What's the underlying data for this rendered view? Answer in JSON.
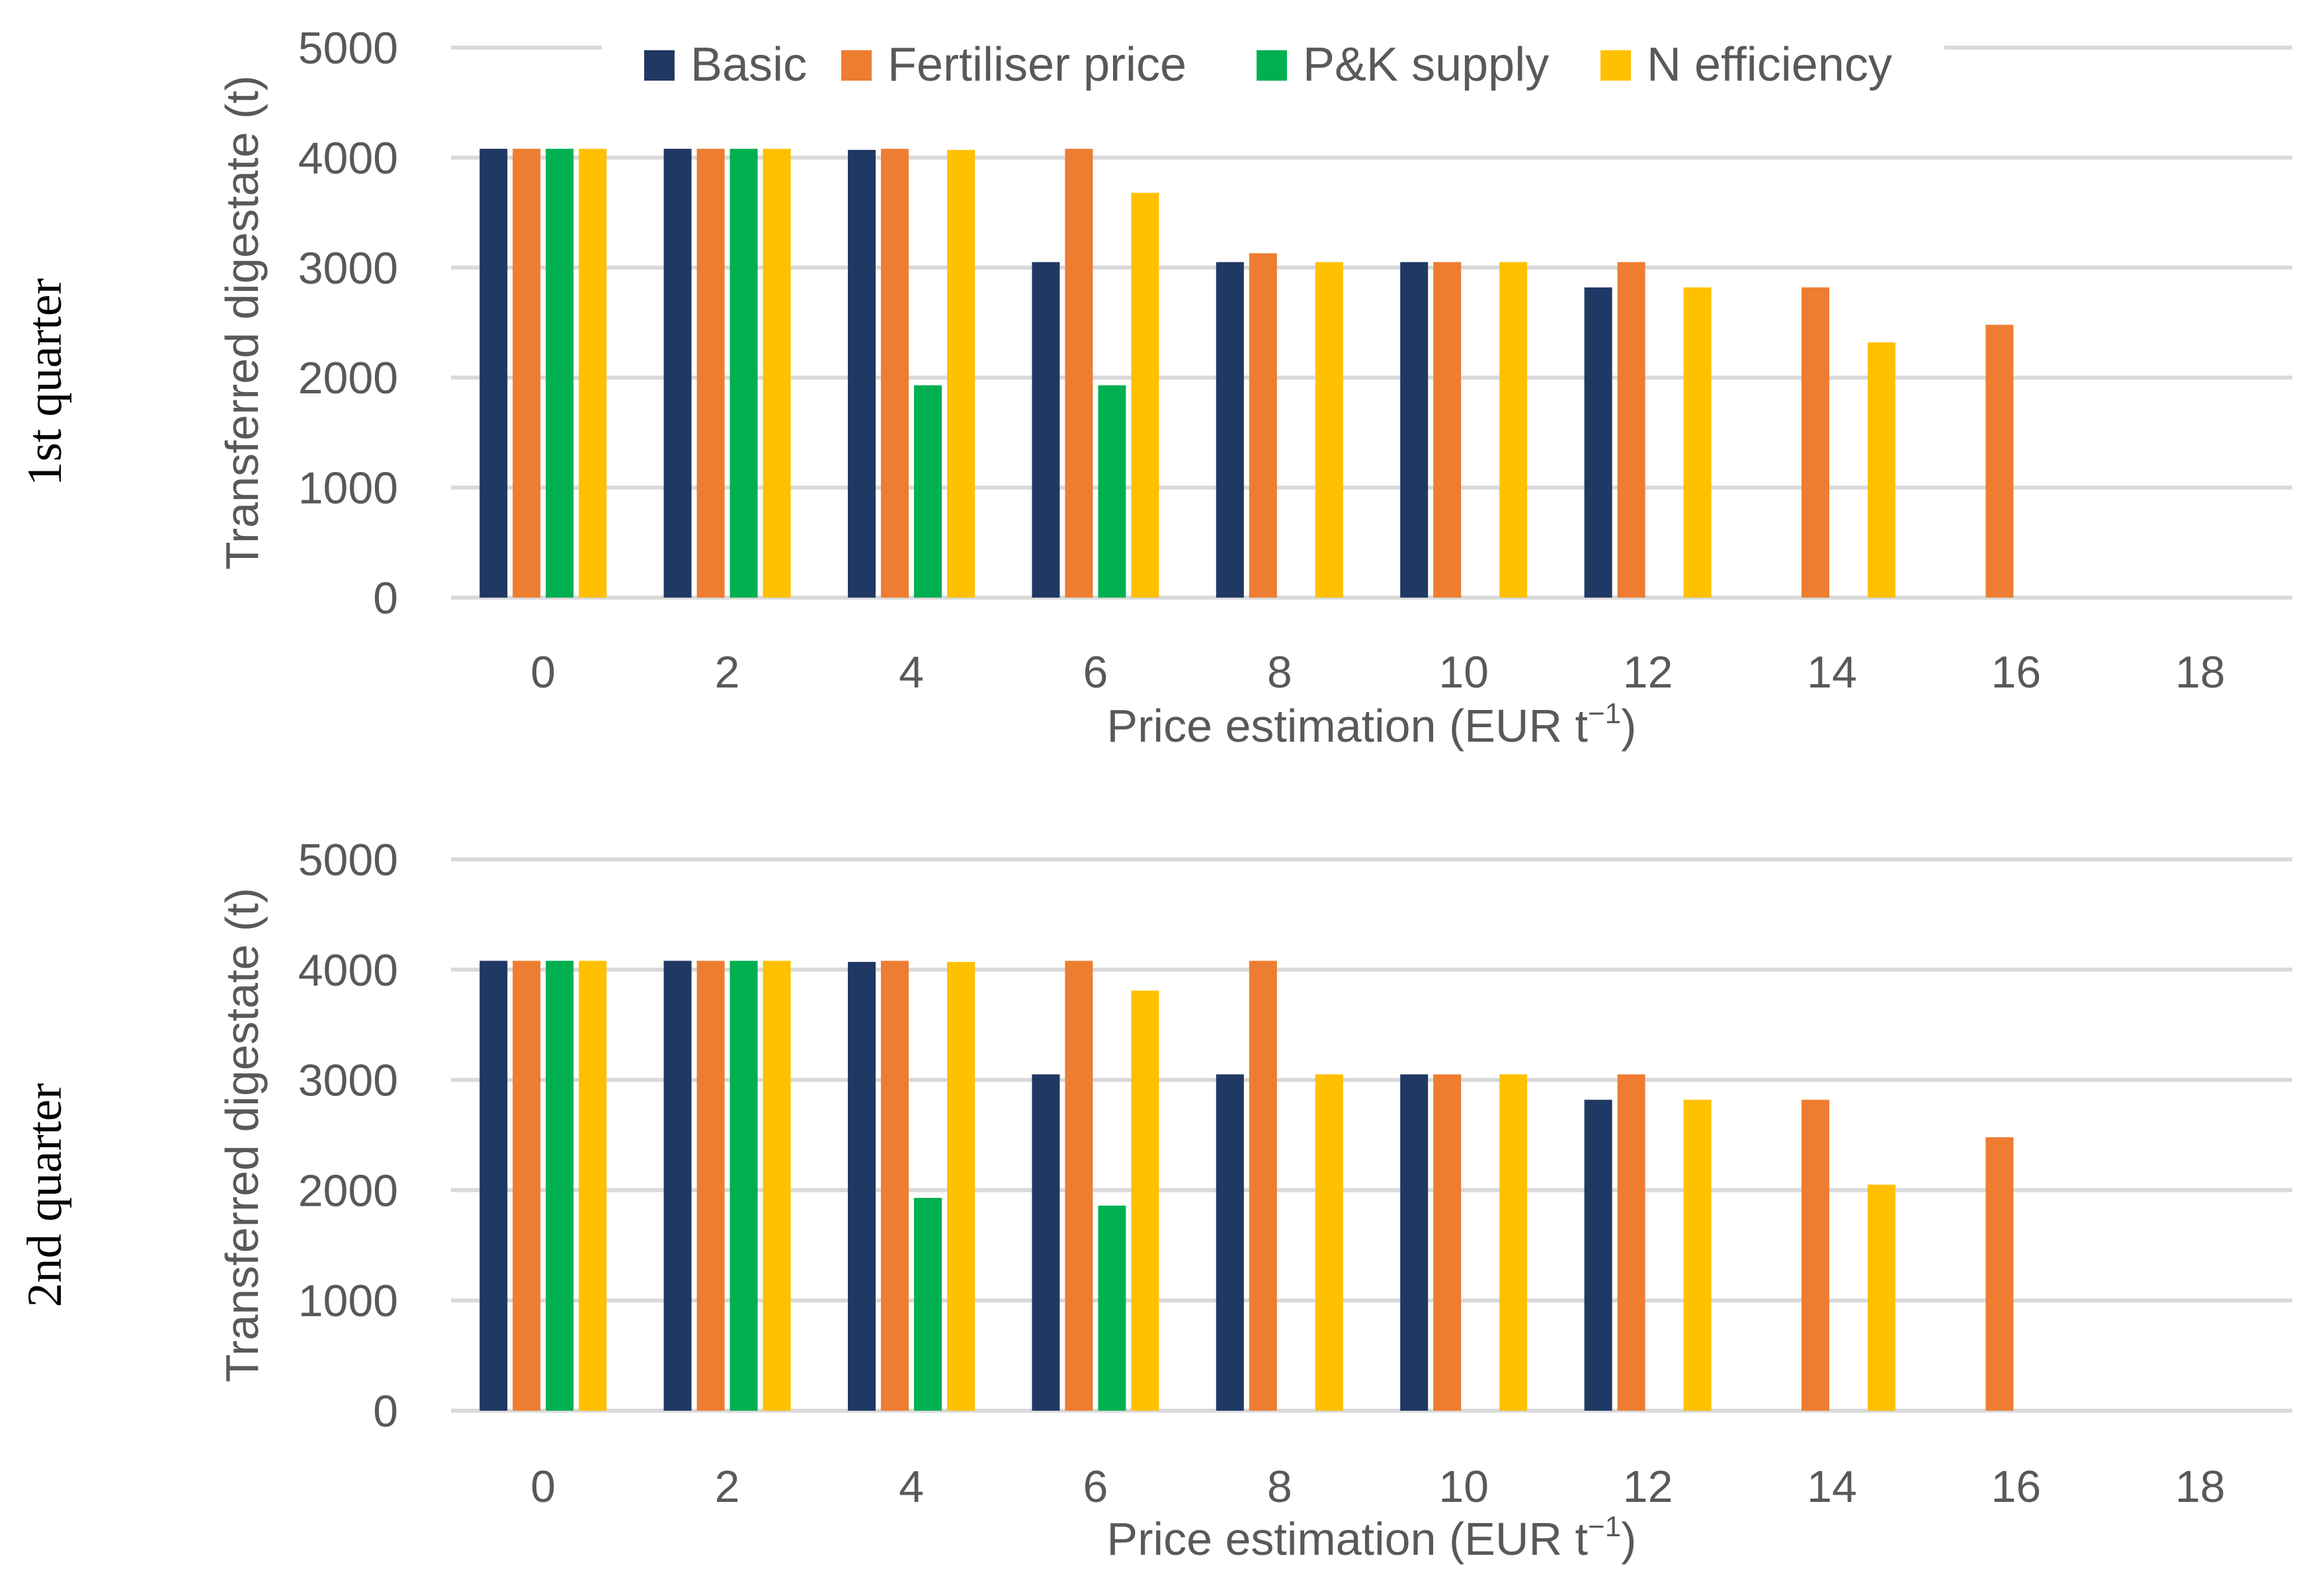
{
  "chart_data": [
    {
      "type": "bar",
      "panel_label": "1st quarter",
      "xlabel": "Price estimation (EUR t−1)",
      "xlabel_main": "Price estimation (EUR t",
      "xlabel_sup": "−1",
      "xlabel_close": ")",
      "ylabel": "Transferred digestate (t)",
      "ylim": [
        0,
        5000
      ],
      "yticks": [
        "0",
        "1000",
        "2000",
        "3000",
        "4000",
        "5000"
      ],
      "categories": [
        "0",
        "2",
        "4",
        "6",
        "8",
        "10",
        "12",
        "14",
        "16",
        "18"
      ],
      "series": [
        {
          "name": "Basic",
          "color": "#203864",
          "values": [
            4080,
            4080,
            4070,
            3050,
            3050,
            3050,
            2820,
            0,
            0,
            0
          ]
        },
        {
          "name": "Fertiliser price",
          "color": "#ED7D31",
          "values": [
            4080,
            4080,
            4080,
            4080,
            3130,
            3050,
            3050,
            2820,
            2480,
            0
          ]
        },
        {
          "name": "P&K supply",
          "color": "#00B050",
          "values": [
            4080,
            4080,
            1930,
            1930,
            0,
            0,
            0,
            0,
            0,
            0
          ]
        },
        {
          "name": "N efficiency",
          "color": "#FFC000",
          "values": [
            4080,
            4080,
            4070,
            3680,
            3050,
            3050,
            2820,
            2320,
            0,
            0
          ]
        }
      ],
      "legend": "top-center"
    },
    {
      "type": "bar",
      "panel_label": "2nd quarter",
      "xlabel": "Price estimation (EUR t−1)",
      "xlabel_main": "Price estimation (EUR t",
      "xlabel_sup": "−1",
      "xlabel_close": ")",
      "ylabel": "Transferred digestate (t)",
      "ylim": [
        0,
        5000
      ],
      "yticks": [
        "0",
        "1000",
        "2000",
        "3000",
        "4000",
        "5000"
      ],
      "categories": [
        "0",
        "2",
        "4",
        "6",
        "8",
        "10",
        "12",
        "14",
        "16",
        "18"
      ],
      "series": [
        {
          "name": "Basic",
          "color": "#203864",
          "values": [
            4080,
            4080,
            4070,
            3050,
            3050,
            3050,
            2820,
            0,
            0,
            0
          ]
        },
        {
          "name": "Fertiliser price",
          "color": "#ED7D31",
          "values": [
            4080,
            4080,
            4080,
            4080,
            4080,
            3050,
            3050,
            2820,
            2480,
            0
          ]
        },
        {
          "name": "P&K supply",
          "color": "#00B050",
          "values": [
            4080,
            4080,
            1930,
            1860,
            0,
            0,
            0,
            0,
            0,
            0
          ]
        },
        {
          "name": "N efficiency",
          "color": "#FFC000",
          "values": [
            4080,
            4080,
            4070,
            3810,
            3050,
            3050,
            2820,
            2050,
            0,
            0
          ]
        }
      ]
    }
  ]
}
